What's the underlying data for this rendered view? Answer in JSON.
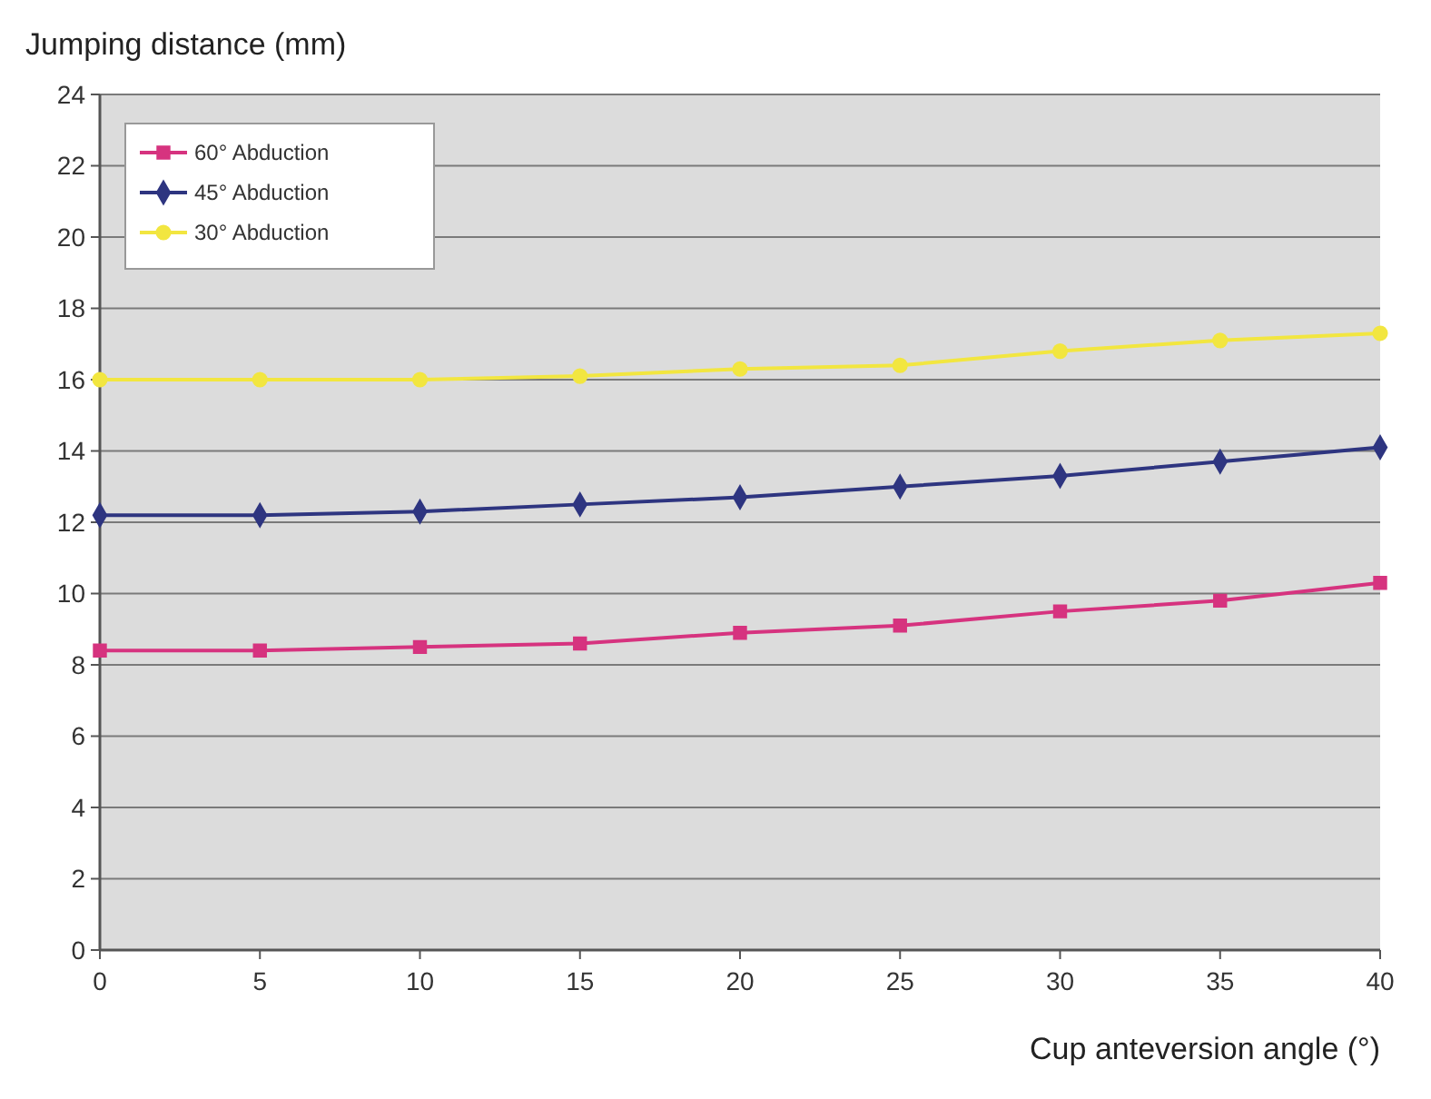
{
  "chart_data": {
    "type": "line",
    "ylabel": "Jumping distance (mm)",
    "xlabel": "Cup anteversion angle (°)",
    "x": [
      0,
      5,
      10,
      15,
      20,
      25,
      30,
      35,
      40
    ],
    "xlim": [
      0,
      40
    ],
    "xticks": [
      0,
      5,
      10,
      15,
      20,
      25,
      30,
      35,
      40
    ],
    "ylim": [
      0,
      24
    ],
    "yticks": [
      0,
      2,
      4,
      6,
      8,
      10,
      12,
      14,
      16,
      18,
      20,
      22,
      24
    ],
    "grid": "y",
    "legend": "top left",
    "series": [
      {
        "name": "60° Abduction",
        "color": "#d6337f",
        "marker": "square",
        "values": [
          8.4,
          8.4,
          8.5,
          8.6,
          8.9,
          9.1,
          9.5,
          9.8,
          10.3
        ]
      },
      {
        "name": "45° Abduction",
        "color": "#2e3580",
        "marker": "diamond",
        "values": [
          12.2,
          12.2,
          12.3,
          12.5,
          12.7,
          13.0,
          13.3,
          13.7,
          14.1
        ]
      },
      {
        "name": "30° Abduction",
        "color": "#f2e640",
        "marker": "circle",
        "values": [
          16.0,
          16.0,
          16.0,
          16.1,
          16.3,
          16.4,
          16.8,
          17.1,
          17.3
        ]
      }
    ]
  }
}
